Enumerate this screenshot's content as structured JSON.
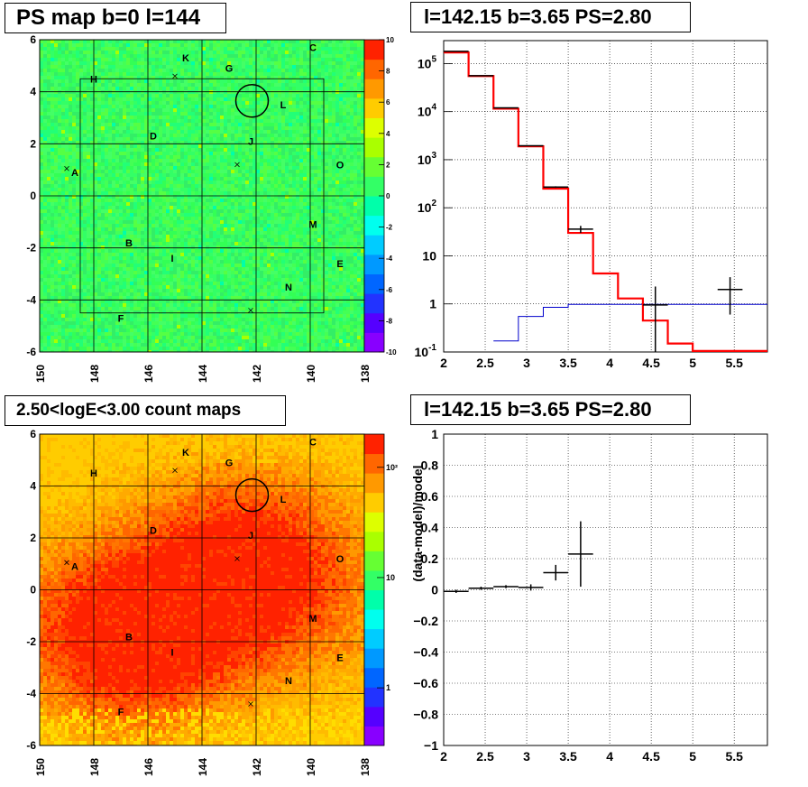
{
  "panels": {
    "map1_title": "PS map b=0 l=144",
    "spec_title": "l=142.15 b=3.65 PS=2.80",
    "map2_title": "2.50<logE<3.00 count maps",
    "resid_title": "l=142.15 b=3.65 PS=2.80",
    "resid_ylabel": "(data-model)/model"
  },
  "colors": {
    "data": "#000000",
    "model": "#ff0000",
    "background_model": "#0000cc",
    "palette": [
      "#8800ff",
      "#5500ff",
      "#2233ff",
      "#0066ff",
      "#0099ff",
      "#00ccff",
      "#00ffee",
      "#00ffaa",
      "#33ff66",
      "#66ff33",
      "#aaff00",
      "#ddff00",
      "#ffcc00",
      "#ff9900",
      "#ff6600",
      "#ff2200"
    ]
  },
  "chart_data": [
    {
      "type": "heatmap",
      "name": "ps_map",
      "title": "PS map b=0 l=144",
      "x_ticks": [
        "150",
        "148",
        "146",
        "144",
        "142",
        "140",
        "138"
      ],
      "y_ticks": [
        "6",
        "4",
        "2",
        "0",
        "-2",
        "-4",
        "-6"
      ],
      "xlim": [
        150,
        138
      ],
      "ylim": [
        -6,
        6
      ],
      "colorbar_ticks": [
        "10",
        "8",
        "6",
        "4",
        "2",
        "0",
        "-2",
        "-4",
        "-6",
        "-8",
        "-10"
      ],
      "colorbar_range": [
        -10,
        10
      ],
      "dominant_value": 0.5,
      "sources": [
        {
          "label": "A",
          "l": 148.7,
          "b": 0.9,
          "marker_l": 149.0,
          "marker_b": 1.05
        },
        {
          "label": "B",
          "l": 146.7,
          "b": -1.8
        },
        {
          "label": "C",
          "l": 139.9,
          "b": 5.7
        },
        {
          "label": "D",
          "l": 145.8,
          "b": 2.3
        },
        {
          "label": "E",
          "l": 138.9,
          "b": -2.6
        },
        {
          "label": "F",
          "l": 147.0,
          "b": -4.7
        },
        {
          "label": "G",
          "l": 143.0,
          "b": 4.9,
          "marker_l": 145.0,
          "marker_b": 4.6
        },
        {
          "label": "H",
          "l": 148.0,
          "b": 4.5
        },
        {
          "label": "I",
          "l": 145.1,
          "b": -2.4
        },
        {
          "label": "J",
          "l": 142.2,
          "b": 2.1,
          "marker_l": 142.7,
          "marker_b": 1.2
        },
        {
          "label": "K",
          "l": 144.6,
          "b": 5.3
        },
        {
          "label": "L",
          "l": 141.0,
          "b": 3.5
        },
        {
          "label": "M",
          "l": 139.9,
          "b": -1.1
        },
        {
          "label": "N",
          "l": 140.8,
          "b": -3.5,
          "marker_l": 142.2,
          "marker_b": -4.4
        },
        {
          "label": "O",
          "l": 138.9,
          "b": 1.2
        }
      ],
      "circle": {
        "l": 142.15,
        "b": 3.65,
        "radius": 0.5
      },
      "roi_box": {
        "l": [
          148.5,
          139.5
        ],
        "b": [
          -4.5,
          4.5
        ]
      }
    },
    {
      "type": "line",
      "name": "spectrum",
      "title": "l=142.15 b=3.65 PS=2.80",
      "x_ticks": [
        "2",
        "2.5",
        "3",
        "3.5",
        "4",
        "4.5",
        "5",
        "5.5"
      ],
      "y_ticks": [
        "10⁻¹",
        "1",
        "10",
        "10²",
        "10³",
        "10⁴",
        "10⁵"
      ],
      "xlim": [
        2,
        5.9
      ],
      "ylim": [
        0.1,
        300000
      ],
      "ylog": true,
      "grid": true,
      "model_edges": [
        2.0,
        2.3,
        2.6,
        2.9,
        3.2,
        3.5,
        3.8,
        4.1,
        4.4,
        4.7,
        5.0,
        5.3,
        5.9
      ],
      "model_values": [
        170000,
        55000,
        11500,
        1900,
        250,
        30,
        4.3,
        1.3,
        0.45,
        0.15,
        0.105,
        0.105
      ],
      "background_edges": [
        2.6,
        2.9,
        3.2,
        3.5,
        5.9
      ],
      "background_values": [
        0.17,
        0.55,
        0.85,
        0.98
      ],
      "data_points": [
        {
          "x": 2.15,
          "y": 180000,
          "xerr": 0.15,
          "ylo": 180000,
          "yhi": 180000
        },
        {
          "x": 2.45,
          "y": 56000,
          "xerr": 0.15,
          "ylo": 56000,
          "yhi": 56000
        },
        {
          "x": 2.75,
          "y": 12000,
          "xerr": 0.15,
          "ylo": 12000,
          "yhi": 12000
        },
        {
          "x": 3.05,
          "y": 1950,
          "xerr": 0.15,
          "ylo": 1950,
          "yhi": 1950
        },
        {
          "x": 3.35,
          "y": 270,
          "xerr": 0.15,
          "ylo": 260,
          "yhi": 280
        },
        {
          "x": 3.65,
          "y": 36,
          "xerr": 0.15,
          "ylo": 30,
          "yhi": 42
        },
        {
          "x": 4.55,
          "y": 0.95,
          "xerr": 0.15,
          "ylo": 0.1,
          "yhi": 2.3
        },
        {
          "x": 5.45,
          "y": 2.0,
          "xerr": 0.15,
          "ylo": 0.6,
          "yhi": 3.6
        }
      ]
    },
    {
      "type": "heatmap",
      "name": "count_map",
      "title": "2.50<logE<3.00 count maps",
      "x_ticks": [
        "150",
        "148",
        "146",
        "144",
        "142",
        "140",
        "138"
      ],
      "y_ticks": [
        "6",
        "4",
        "2",
        "0",
        "-2",
        "-4",
        "-6"
      ],
      "xlim": [
        150,
        138
      ],
      "ylim": [
        -6,
        6
      ],
      "colorbar_ticks": [
        "10²",
        "10",
        "1"
      ],
      "colorbar_log": true,
      "colorbar_range": [
        0.3,
        200
      ],
      "peaks": [
        {
          "l": 146.7,
          "b": -1.8,
          "counts": 140
        },
        {
          "l": 142.2,
          "b": 1.2,
          "counts": 110
        }
      ]
    },
    {
      "type": "scatter",
      "name": "residuals",
      "title": "l=142.15 b=3.65 PS=2.80",
      "ylabel": "(data-model)/model",
      "x_ticks": [
        "2",
        "2.5",
        "3",
        "3.5",
        "4",
        "4.5",
        "5",
        "5.5"
      ],
      "y_ticks": [
        "1",
        "0.8",
        "0.6",
        "0.4",
        "0.2",
        "0",
        "−0.2",
        "−0.4",
        "−0.6",
        "−0.8",
        "−1"
      ],
      "xlim": [
        2,
        5.9
      ],
      "ylim": [
        -1,
        1
      ],
      "grid": true,
      "points": [
        {
          "x": 2.15,
          "y": -0.01,
          "xerr": 0.15,
          "yerr": 0.01
        },
        {
          "x": 2.45,
          "y": 0.01,
          "xerr": 0.15,
          "yerr": 0.01
        },
        {
          "x": 2.75,
          "y": 0.02,
          "xerr": 0.15,
          "yerr": 0.01
        },
        {
          "x": 3.05,
          "y": 0.015,
          "xerr": 0.15,
          "yerr": 0.02
        },
        {
          "x": 3.35,
          "y": 0.11,
          "xerr": 0.15,
          "yerr": 0.05
        },
        {
          "x": 3.65,
          "y": 0.23,
          "xerr": 0.15,
          "yerr": 0.21
        }
      ]
    }
  ]
}
